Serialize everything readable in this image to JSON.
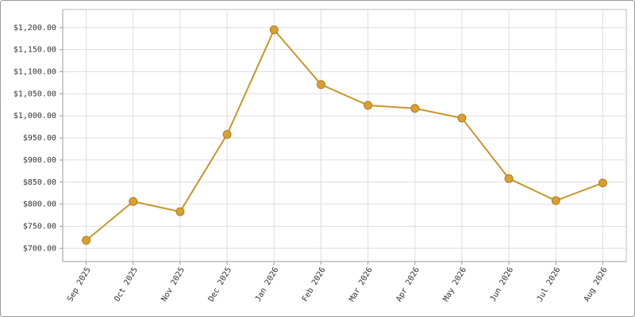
{
  "chart_data": {
    "type": "line",
    "categories": [
      "Sep 2025",
      "Oct 2025",
      "Nov 2025",
      "Dec 2025",
      "Jan 2026",
      "Feb 2026",
      "Mar 2026",
      "Apr 2026",
      "May 2026",
      "Jun 2026",
      "Jul 2026",
      "Aug 2026"
    ],
    "values": [
      718,
      806,
      783,
      958,
      1195,
      1071,
      1024,
      1017,
      995,
      858,
      808,
      848
    ],
    "color": "#c8962a",
    "marker_color": "#d9a030",
    "ylim": [
      670,
      1241
    ],
    "yticks": [
      {
        "value": 700,
        "label": "$700.00"
      },
      {
        "value": 750,
        "label": "$750.00"
      },
      {
        "value": 800,
        "label": "$800.00"
      },
      {
        "value": 850,
        "label": "$850.00"
      },
      {
        "value": 900,
        "label": "$900.00"
      },
      {
        "value": 950,
        "label": "$950.00"
      },
      {
        "value": 1000,
        "label": "$1,000.00"
      },
      {
        "value": 1050,
        "label": "$1,050.00"
      },
      {
        "value": 1100,
        "label": "$1,100.00"
      },
      {
        "value": 1150,
        "label": "$1,150.00"
      },
      {
        "value": 1200,
        "label": "$1,200.00"
      }
    ],
    "grid": true
  }
}
